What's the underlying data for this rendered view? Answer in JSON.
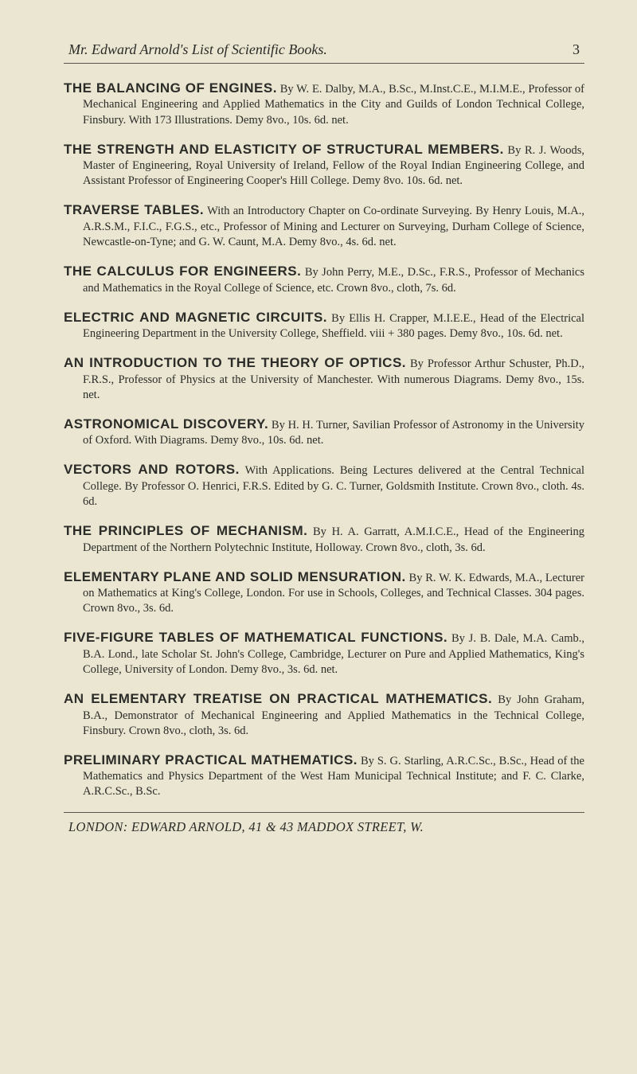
{
  "colors": {
    "background": "#eae6d1",
    "text": "#2b2b28",
    "rule": "#5a574d"
  },
  "typography": {
    "body_font": "Georgia, 'Times New Roman', serif",
    "title_font": "Arial, Helvetica, sans-serif",
    "body_fontsize_pt": 11,
    "title_fontsize_pt": 13,
    "running_head_fontsize_pt": 14,
    "footer_fontsize_pt": 12
  },
  "page": {
    "running_head": "Mr. Edward Arnold's List of Scientific Books.",
    "page_number": "3"
  },
  "entries": [
    {
      "title": "THE BALANCING OF ENGINES.",
      "body": "By W. E. Dalby, M.A., B.Sc., M.Inst.C.E., M.I.M.E., Professor of Mechanical Engineering and Applied Mathematics in the City and Guilds of London Technical College, Finsbury. With 173 Illustrations. Demy 8vo., 10s. 6d. net."
    },
    {
      "title": "THE STRENGTH AND ELASTICITY OF STRUCTURAL MEMBERS.",
      "body": "By R. J. Woods, Master of Engineering, Royal University of Ireland, Fellow of the Royal Indian Engineering College, and Assistant Professor of Engineering Cooper's Hill College. Demy 8vo. 10s. 6d. net."
    },
    {
      "title": "TRAVERSE TABLES.",
      "body": "With an Introductory Chapter on Co-ordinate Surveying. By Henry Louis, M.A., A.R.S.M., F.I.C., F.G.S., etc., Professor of Mining and Lecturer on Surveying, Durham College of Science, Newcastle-on-Tyne; and G. W. Caunt, M.A. Demy 8vo., 4s. 6d. net."
    },
    {
      "title": "THE CALCULUS FOR ENGINEERS.",
      "body": "By John Perry, M.E., D.Sc., F.R.S., Professor of Mechanics and Mathematics in the Royal College of Science, etc. Crown 8vo., cloth, 7s. 6d."
    },
    {
      "title": "ELECTRIC AND MAGNETIC CIRCUITS.",
      "body": "By Ellis H. Crapper, M.I.E.E., Head of the Electrical Engineering Department in the University College, Sheffield. viii + 380 pages. Demy 8vo., 10s. 6d. net."
    },
    {
      "title": "AN INTRODUCTION TO THE THEORY OF OPTICS.",
      "body": "By Professor Arthur Schuster, Ph.D., F.R.S., Professor of Physics at the University of Manchester. With numerous Diagrams. Demy 8vo., 15s. net."
    },
    {
      "title": "ASTRONOMICAL DISCOVERY.",
      "body": "By H. H. Turner, Savilian Professor of Astronomy in the University of Oxford. With Diagrams. Demy 8vo., 10s. 6d. net."
    },
    {
      "title": "VECTORS AND ROTORS.",
      "body": "With Applications. Being Lectures delivered at the Central Technical College. By Professor O. Henrici, F.R.S. Edited by G. C. Turner, Goldsmith Institute. Crown 8vo., cloth. 4s. 6d."
    },
    {
      "title": "THE PRINCIPLES OF MECHANISM.",
      "body": "By H. A. Garratt, A.M.I.C.E., Head of the Engineering Department of the Northern Polytechnic Institute, Holloway. Crown 8vo., cloth, 3s. 6d."
    },
    {
      "title": "ELEMENTARY PLANE AND SOLID MENSURATION.",
      "body": "By R. W. K. Edwards, M.A., Lecturer on Mathematics at King's College, London. For use in Schools, Colleges, and Technical Classes. 304 pages. Crown 8vo., 3s. 6d."
    },
    {
      "title": "FIVE-FIGURE TABLES OF MATHEMATICAL FUNCTIONS.",
      "body": "By J. B. Dale, M.A. Camb., B.A. Lond., late Scholar St. John's College, Cambridge, Lecturer on Pure and Applied Mathematics, King's College, University of London. Demy 8vo., 3s. 6d. net."
    },
    {
      "title": "AN ELEMENTARY TREATISE ON PRACTICAL MATHEMATICS.",
      "body": "By John Graham, B.A., Demonstrator of Mechanical Engineering and Applied Mathematics in the Technical College, Finsbury. Crown 8vo., cloth, 3s. 6d."
    },
    {
      "title": "PRELIMINARY PRACTICAL MATHEMATICS.",
      "body": "By S. G. Starling, A.R.C.Sc., B.Sc., Head of the Mathematics and Physics Department of the West Ham Municipal Technical Institute; and F. C. Clarke, A.R.C.Sc., B.Sc."
    }
  ],
  "footer": "LONDON: EDWARD ARNOLD, 41 & 43 MADDOX STREET, W."
}
